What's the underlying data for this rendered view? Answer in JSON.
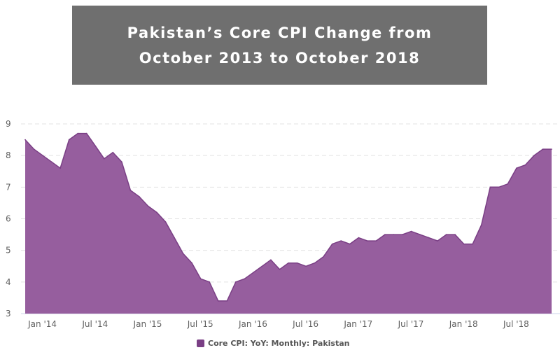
{
  "title": {
    "line1": "Pakistan’s Core CPI Change from",
    "line2": "October 2013 to October 2018"
  },
  "chart_data": {
    "type": "area",
    "title": "Pakistan’s Core CPI Change from October 2013 to October 2018",
    "x_start": "2013-10",
    "x_end": "2018-10",
    "frequency": "monthly",
    "ylim": [
      3,
      9
    ],
    "yticks": [
      3,
      4,
      5,
      6,
      7,
      8,
      9
    ],
    "xticks": [
      {
        "label": "Jan '14",
        "index": 3
      },
      {
        "label": "Jul '14",
        "index": 9
      },
      {
        "label": "Jan '15",
        "index": 15
      },
      {
        "label": "Jul '15",
        "index": 21
      },
      {
        "label": "Jan '16",
        "index": 27
      },
      {
        "label": "Jul '16",
        "index": 33
      },
      {
        "label": "Jan '17",
        "index": 39
      },
      {
        "label": "Jul '17",
        "index": 45
      },
      {
        "label": "Jan '18",
        "index": 51
      },
      {
        "label": "Jul '18",
        "index": 57
      }
    ],
    "grid": true,
    "legend_position": "bottom",
    "series": [
      {
        "name": "Core CPI: YoY: Monthly: Pakistan",
        "color": "#965e9e",
        "line_color": "#7a3f85",
        "values": [
          8.5,
          8.2,
          8.0,
          7.8,
          7.6,
          8.5,
          8.7,
          8.7,
          8.3,
          7.9,
          8.1,
          7.8,
          6.9,
          6.7,
          6.4,
          6.2,
          5.9,
          5.4,
          4.9,
          4.6,
          4.1,
          4.0,
          3.4,
          3.4,
          4.0,
          4.1,
          4.3,
          4.5,
          4.7,
          4.4,
          4.6,
          4.6,
          4.5,
          4.6,
          4.8,
          5.2,
          5.3,
          5.2,
          5.4,
          5.3,
          5.3,
          5.5,
          5.5,
          5.5,
          5.6,
          5.5,
          5.4,
          5.3,
          5.5,
          5.5,
          5.2,
          5.2,
          5.8,
          7.0,
          7.0,
          7.1,
          7.6,
          7.7,
          8.0,
          8.2,
          8.2
        ]
      }
    ]
  }
}
